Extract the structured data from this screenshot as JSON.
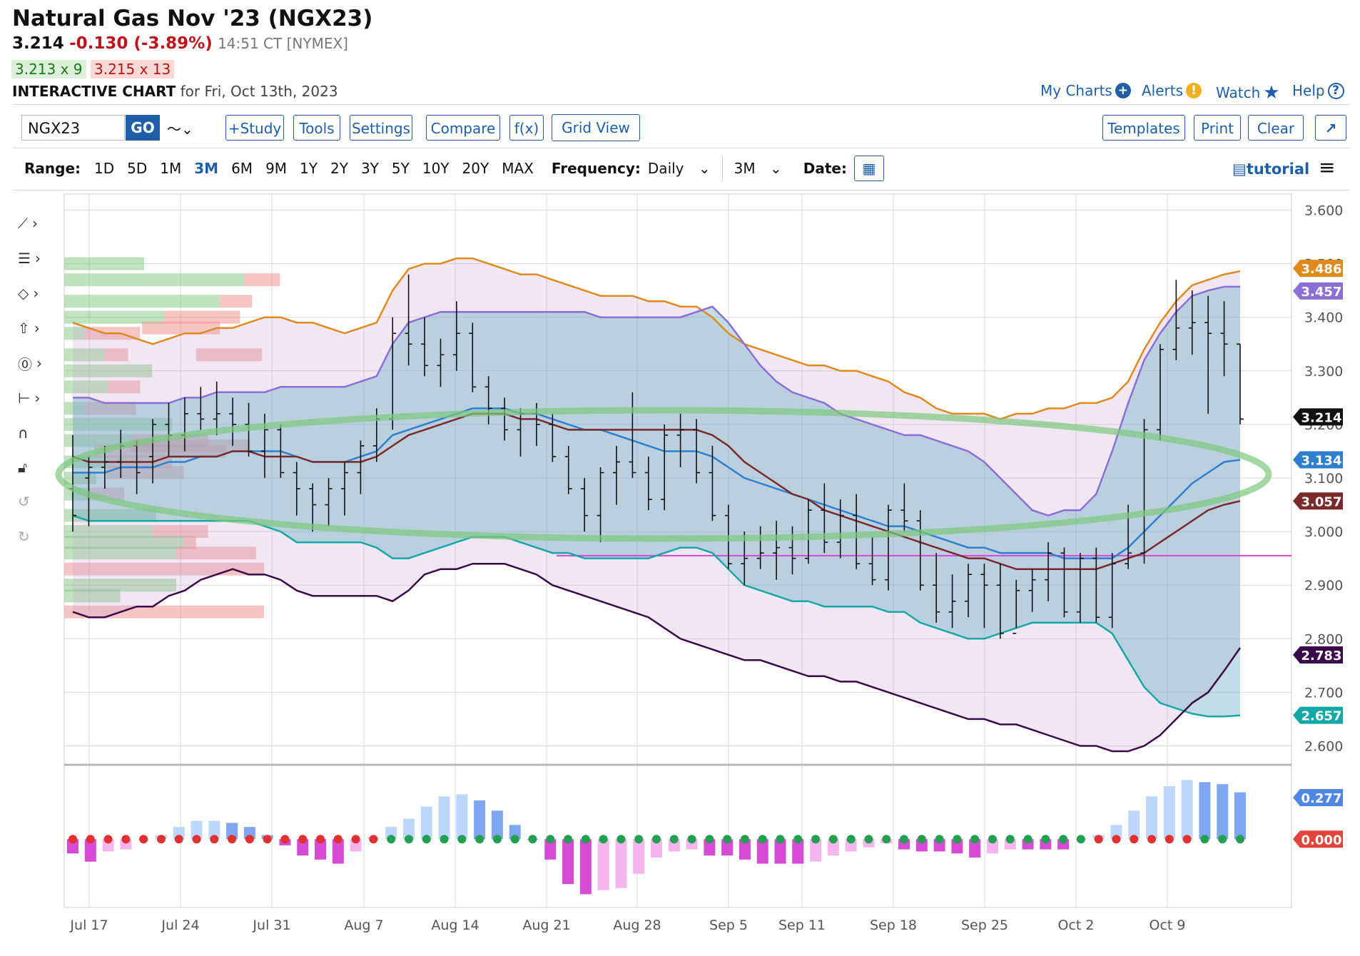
{
  "header": {
    "title": "Natural Gas Nov '23 (NGX23)",
    "last": "3.214",
    "change": "-0.130 (-3.89%)",
    "time": "14:51 CT [NYMEX]",
    "bid": "3.213 x 9",
    "ask": "3.215 x 13",
    "chart_label": "INTERACTIVE CHART",
    "chart_for": "for Fri, Oct 13th, 2023"
  },
  "top_links": {
    "my_charts": "My Charts",
    "alerts": "Alerts",
    "watch": "Watch",
    "help": "Help"
  },
  "toolbar": {
    "symbol": "NGX23",
    "go": "GO",
    "study": "+Study",
    "tools": "Tools",
    "settings": "Settings",
    "compare": "Compare",
    "fx": "f(x)",
    "grid": "Grid View",
    "templates": "Templates",
    "print": "Print",
    "clear": "Clear",
    "expand": "↗"
  },
  "range": {
    "label": "Range:",
    "items": [
      "1D",
      "5D",
      "1M",
      "3M",
      "6M",
      "9M",
      "1Y",
      "2Y",
      "3Y",
      "5Y",
      "10Y",
      "20Y",
      "MAX"
    ],
    "selected": "3M",
    "frequency_label": "Frequency:",
    "frequency": "Daily",
    "period": "3M",
    "date_label": "Date:",
    "tutorial": "tutorial"
  },
  "colors": {
    "grid": "#d8d8d8",
    "upper_band": "#e08a1e",
    "ma_purple": "#8a6fd6",
    "ma_blue": "#2f7fd0",
    "ma_brown": "#7a2a2a",
    "lower_teal": "#16a8a8",
    "lower_dark": "#3b0a4a",
    "highlight": "#7ec87e",
    "magenta_line": "#d946d9",
    "price": "#111111"
  },
  "chart_data": {
    "type": "bar",
    "x_labels": [
      "Jul 17",
      "Jul 24",
      "Jul 31",
      "Aug 7",
      "Aug 14",
      "Aug 21",
      "Aug 28",
      "Sep 5",
      "Sep 11",
      "Sep 18",
      "Sep 25",
      "Oct 2",
      "Oct 9"
    ],
    "y_ticks": [
      "3.600",
      "3.500",
      "3.400",
      "3.300",
      "3.200",
      "3.100",
      "3.000",
      "2.900",
      "2.800",
      "2.700",
      "2.600"
    ],
    "ylim": [
      2.57,
      3.63
    ],
    "ohlc": [
      [
        3.08,
        3.18,
        3.0,
        3.03
      ],
      [
        3.1,
        3.14,
        3.01,
        3.12
      ],
      [
        3.12,
        3.16,
        3.08,
        3.13
      ],
      [
        3.13,
        3.19,
        3.1,
        3.16
      ],
      [
        3.16,
        3.17,
        3.07,
        3.11
      ],
      [
        3.14,
        3.21,
        3.09,
        3.2
      ],
      [
        3.2,
        3.24,
        3.14,
        3.18
      ],
      [
        3.18,
        3.25,
        3.15,
        3.22
      ],
      [
        3.22,
        3.27,
        3.19,
        3.21
      ],
      [
        3.21,
        3.28,
        3.18,
        3.22
      ],
      [
        3.22,
        3.25,
        3.16,
        3.2
      ],
      [
        3.2,
        3.24,
        3.14,
        3.15
      ],
      [
        3.15,
        3.22,
        3.1,
        3.19
      ],
      [
        3.19,
        3.2,
        3.1,
        3.11
      ],
      [
        3.11,
        3.13,
        3.03,
        3.08
      ],
      [
        3.08,
        3.09,
        3.0,
        3.05
      ],
      [
        3.05,
        3.1,
        3.01,
        3.08
      ],
      [
        3.08,
        3.13,
        3.03,
        3.11
      ],
      [
        3.11,
        3.17,
        3.07,
        3.16
      ],
      [
        3.16,
        3.23,
        3.13,
        3.21
      ],
      [
        3.21,
        3.4,
        3.19,
        3.37
      ],
      [
        3.37,
        3.48,
        3.31,
        3.35
      ],
      [
        3.35,
        3.4,
        3.29,
        3.31
      ],
      [
        3.31,
        3.36,
        3.27,
        3.33
      ],
      [
        3.33,
        3.43,
        3.3,
        3.37
      ],
      [
        3.37,
        3.39,
        3.26,
        3.27
      ],
      [
        3.27,
        3.29,
        3.2,
        3.23
      ],
      [
        3.23,
        3.25,
        3.17,
        3.19
      ],
      [
        3.19,
        3.23,
        3.14,
        3.22
      ],
      [
        3.22,
        3.24,
        3.16,
        3.2
      ],
      [
        3.2,
        3.22,
        3.13,
        3.14
      ],
      [
        3.14,
        3.16,
        3.07,
        3.08
      ],
      [
        3.08,
        3.1,
        3.0,
        3.03
      ],
      [
        3.03,
        3.12,
        2.98,
        3.11
      ],
      [
        3.11,
        3.16,
        3.05,
        3.13
      ],
      [
        3.13,
        3.26,
        3.1,
        3.11
      ],
      [
        3.11,
        3.14,
        3.04,
        3.06
      ],
      [
        3.06,
        3.2,
        3.04,
        3.18
      ],
      [
        3.18,
        3.22,
        3.12,
        3.19
      ],
      [
        3.19,
        3.21,
        3.09,
        3.11
      ],
      [
        3.11,
        3.16,
        3.02,
        3.03
      ],
      [
        3.03,
        3.05,
        2.93,
        2.94
      ],
      [
        2.94,
        3.0,
        2.9,
        2.95
      ],
      [
        2.95,
        3.01,
        2.93,
        2.96
      ],
      [
        2.96,
        3.02,
        2.91,
        2.97
      ],
      [
        2.97,
        3.01,
        2.92,
        2.95
      ],
      [
        2.95,
        3.06,
        2.94,
        3.04
      ],
      [
        3.04,
        3.09,
        2.96,
        2.98
      ],
      [
        2.98,
        3.06,
        2.95,
        3.03
      ],
      [
        3.03,
        3.07,
        2.93,
        2.94
      ],
      [
        2.94,
        2.99,
        2.9,
        2.91
      ],
      [
        2.91,
        3.05,
        2.89,
        3.04
      ],
      [
        3.04,
        3.09,
        3.0,
        3.02
      ],
      [
        3.02,
        3.04,
        2.89,
        2.9
      ],
      [
        2.9,
        2.96,
        2.83,
        2.85
      ],
      [
        2.85,
        2.92,
        2.82,
        2.87
      ],
      [
        2.87,
        2.94,
        2.84,
        2.92
      ],
      [
        2.92,
        2.94,
        2.82,
        2.9
      ],
      [
        2.9,
        2.94,
        2.8,
        2.81
      ],
      [
        2.81,
        2.91,
        2.82,
        2.89
      ],
      [
        2.89,
        2.93,
        2.85,
        2.91
      ],
      [
        2.91,
        2.98,
        2.87,
        2.96
      ],
      [
        2.96,
        2.97,
        2.84,
        2.85
      ],
      [
        2.85,
        2.96,
        2.83,
        2.95
      ],
      [
        2.95,
        2.97,
        2.83,
        2.84
      ],
      [
        2.84,
        2.96,
        2.82,
        2.94
      ],
      [
        2.94,
        3.05,
        2.93,
        2.96
      ],
      [
        2.96,
        3.21,
        2.94,
        3.19
      ],
      [
        3.19,
        3.35,
        3.17,
        3.34
      ],
      [
        3.34,
        3.47,
        3.32,
        3.38
      ],
      [
        3.38,
        3.45,
        3.33,
        3.39
      ],
      [
        3.39,
        3.44,
        3.22,
        3.37
      ],
      [
        3.37,
        3.43,
        3.29,
        3.35
      ],
      [
        3.35,
        3.35,
        3.2,
        3.21
      ]
    ],
    "series": [
      {
        "name": "upper_band",
        "values": [
          3.39,
          3.38,
          3.37,
          3.37,
          3.36,
          3.35,
          3.36,
          3.37,
          3.37,
          3.38,
          3.38,
          3.39,
          3.4,
          3.4,
          3.39,
          3.39,
          3.38,
          3.37,
          3.38,
          3.39,
          3.45,
          3.49,
          3.5,
          3.5,
          3.51,
          3.51,
          3.5,
          3.49,
          3.48,
          3.48,
          3.47,
          3.46,
          3.45,
          3.44,
          3.44,
          3.44,
          3.43,
          3.43,
          3.42,
          3.42,
          3.4,
          3.37,
          3.35,
          3.34,
          3.33,
          3.32,
          3.31,
          3.31,
          3.3,
          3.3,
          3.29,
          3.28,
          3.26,
          3.25,
          3.23,
          3.22,
          3.22,
          3.22,
          3.21,
          3.22,
          3.22,
          3.23,
          3.23,
          3.24,
          3.24,
          3.25,
          3.28,
          3.34,
          3.39,
          3.43,
          3.46,
          3.47,
          3.48,
          3.486
        ]
      },
      {
        "name": "ma_purple",
        "values": [
          3.25,
          3.25,
          3.24,
          3.24,
          3.24,
          3.24,
          3.24,
          3.25,
          3.25,
          3.26,
          3.26,
          3.26,
          3.26,
          3.27,
          3.27,
          3.27,
          3.27,
          3.27,
          3.28,
          3.29,
          3.35,
          3.39,
          3.4,
          3.41,
          3.41,
          3.41,
          3.41,
          3.41,
          3.41,
          3.41,
          3.41,
          3.41,
          3.41,
          3.4,
          3.4,
          3.4,
          3.4,
          3.4,
          3.4,
          3.41,
          3.42,
          3.39,
          3.35,
          3.31,
          3.28,
          3.26,
          3.25,
          3.24,
          3.22,
          3.21,
          3.2,
          3.19,
          3.18,
          3.18,
          3.17,
          3.16,
          3.15,
          3.13,
          3.1,
          3.07,
          3.04,
          3.03,
          3.04,
          3.04,
          3.07,
          3.15,
          3.24,
          3.32,
          3.37,
          3.41,
          3.44,
          3.45,
          3.457,
          3.457
        ]
      },
      {
        "name": "ma_blue",
        "values": [
          3.11,
          3.11,
          3.11,
          3.12,
          3.12,
          3.12,
          3.13,
          3.13,
          3.14,
          3.14,
          3.15,
          3.15,
          3.15,
          3.15,
          3.14,
          3.13,
          3.13,
          3.13,
          3.14,
          3.15,
          3.18,
          3.19,
          3.2,
          3.21,
          3.22,
          3.23,
          3.23,
          3.23,
          3.22,
          3.22,
          3.21,
          3.2,
          3.19,
          3.19,
          3.18,
          3.17,
          3.16,
          3.15,
          3.15,
          3.15,
          3.14,
          3.12,
          3.1,
          3.09,
          3.08,
          3.07,
          3.06,
          3.05,
          3.04,
          3.03,
          3.02,
          3.01,
          3.01,
          3.0,
          2.99,
          2.98,
          2.97,
          2.97,
          2.96,
          2.96,
          2.96,
          2.96,
          2.95,
          2.95,
          2.95,
          2.95,
          2.97,
          3.0,
          3.03,
          3.06,
          3.09,
          3.11,
          3.13,
          3.134
        ]
      },
      {
        "name": "ma_brown",
        "values": [
          3.14,
          3.13,
          3.13,
          3.13,
          3.13,
          3.13,
          3.14,
          3.14,
          3.14,
          3.14,
          3.15,
          3.15,
          3.14,
          3.14,
          3.14,
          3.13,
          3.13,
          3.13,
          3.13,
          3.14,
          3.16,
          3.18,
          3.19,
          3.2,
          3.21,
          3.22,
          3.22,
          3.22,
          3.21,
          3.21,
          3.2,
          3.19,
          3.19,
          3.19,
          3.19,
          3.19,
          3.19,
          3.19,
          3.19,
          3.19,
          3.18,
          3.16,
          3.13,
          3.11,
          3.09,
          3.07,
          3.06,
          3.04,
          3.03,
          3.02,
          3.01,
          3.0,
          2.99,
          2.98,
          2.97,
          2.96,
          2.95,
          2.95,
          2.94,
          2.93,
          2.93,
          2.93,
          2.93,
          2.93,
          2.93,
          2.94,
          2.95,
          2.96,
          2.98,
          3.0,
          3.02,
          3.04,
          3.05,
          3.057
        ]
      },
      {
        "name": "lower_teal",
        "values": [
          3.03,
          3.02,
          3.02,
          3.02,
          3.02,
          3.02,
          3.02,
          3.02,
          3.02,
          3.02,
          3.02,
          3.02,
          3.01,
          3.0,
          2.98,
          2.98,
          2.98,
          2.98,
          2.98,
          2.97,
          2.95,
          2.95,
          2.96,
          2.97,
          2.98,
          2.99,
          2.99,
          2.99,
          2.98,
          2.97,
          2.96,
          2.96,
          2.95,
          2.95,
          2.95,
          2.95,
          2.95,
          2.96,
          2.97,
          2.97,
          2.96,
          2.93,
          2.9,
          2.89,
          2.88,
          2.87,
          2.87,
          2.86,
          2.86,
          2.86,
          2.86,
          2.85,
          2.85,
          2.83,
          2.82,
          2.81,
          2.8,
          2.8,
          2.81,
          2.82,
          2.83,
          2.83,
          2.83,
          2.83,
          2.83,
          2.81,
          2.76,
          2.71,
          2.68,
          2.67,
          2.66,
          2.655,
          2.655,
          2.657
        ]
      },
      {
        "name": "lower_dark",
        "values": [
          2.85,
          2.84,
          2.84,
          2.85,
          2.86,
          2.86,
          2.88,
          2.89,
          2.91,
          2.92,
          2.93,
          2.92,
          2.92,
          2.91,
          2.89,
          2.88,
          2.88,
          2.88,
          2.88,
          2.88,
          2.87,
          2.89,
          2.92,
          2.93,
          2.93,
          2.94,
          2.94,
          2.94,
          2.93,
          2.92,
          2.9,
          2.89,
          2.88,
          2.87,
          2.86,
          2.85,
          2.84,
          2.82,
          2.8,
          2.79,
          2.78,
          2.77,
          2.76,
          2.76,
          2.75,
          2.74,
          2.73,
          2.73,
          2.72,
          2.72,
          2.71,
          2.7,
          2.69,
          2.68,
          2.67,
          2.66,
          2.65,
          2.65,
          2.64,
          2.64,
          2.63,
          2.62,
          2.61,
          2.6,
          2.6,
          2.59,
          2.59,
          2.6,
          2.62,
          2.65,
          2.68,
          2.7,
          2.74,
          2.783
        ]
      }
    ],
    "price_level_line": 2.955,
    "badges": [
      {
        "label": "3.486",
        "value": 3.486,
        "color": "#e08a1e"
      },
      {
        "label": "3.457",
        "value": 3.457,
        "color": "#8a6fd6"
      },
      {
        "label": "3.214",
        "value": 3.214,
        "color": "#111111"
      },
      {
        "label": "3.134",
        "value": 3.134,
        "color": "#2f7fd0"
      },
      {
        "label": "3.057",
        "value": 3.057,
        "color": "#7a2a2a"
      },
      {
        "label": "2.783",
        "value": 2.783,
        "color": "#3b0a4a"
      },
      {
        "label": "2.657",
        "value": 2.657,
        "color": "#16a8a8"
      }
    ],
    "volume_profile": [
      {
        "price": 3.5,
        "green": 0.2,
        "red": 0.0
      },
      {
        "price": 3.47,
        "green": 0.45,
        "red": 0.09
      },
      {
        "price": 3.43,
        "green": 0.39,
        "red": 0.08
      },
      {
        "price": 3.4,
        "green": 0.25,
        "red": 0.19
      },
      {
        "price": 3.37,
        "green": 0.05,
        "red": 0.14
      },
      {
        "price": 3.33,
        "green": 0.1,
        "red": 0.06
      },
      {
        "price": 3.3,
        "green": 0.22,
        "red": 0.0
      },
      {
        "price": 3.27,
        "green": 0.11,
        "red": 0.08
      },
      {
        "price": 3.23,
        "green": 0.05,
        "red": 0.13
      },
      {
        "price": 3.2,
        "green": 0.27,
        "red": 0.0
      },
      {
        "price": 3.17,
        "green": 0.17,
        "red": 0.19
      },
      {
        "price": 3.13,
        "green": 0.11,
        "red": 0.16
      },
      {
        "price": 3.1,
        "green": 0.08,
        "red": 0.0
      },
      {
        "price": 3.07,
        "green": 0.06,
        "red": 0.09
      },
      {
        "price": 3.03,
        "green": 0.23,
        "red": 0.0
      },
      {
        "price": 3.0,
        "green": 0.22,
        "red": 0.14
      },
      {
        "price": 2.98,
        "green": 0.3,
        "red": 0.03
      },
      {
        "price": 2.96,
        "green": 0.28,
        "red": 0.2
      },
      {
        "price": 2.93,
        "green": 0.0,
        "red": 0.5
      },
      {
        "price": 2.9,
        "green": 0.28,
        "red": 0.0
      },
      {
        "price": 2.88,
        "green": 0.14,
        "red": 0.0
      },
      {
        "price": 2.85,
        "green": 0.0,
        "red": 0.5
      }
    ],
    "volume_price_rows": [
      {
        "price": 3.38,
        "start": 0.13,
        "width": 0.13,
        "color": "red"
      },
      {
        "price": 3.33,
        "start": 0.22,
        "width": 0.11,
        "color": "red"
      },
      {
        "price": 3.15,
        "start": 0.05,
        "width": 0.22,
        "color": "red"
      },
      {
        "price": 3.11,
        "start": 0.07,
        "width": 0.13,
        "color": "red"
      },
      {
        "price": 3.16,
        "start": 0.11,
        "width": 0.2,
        "color": "red"
      }
    ],
    "indicator": {
      "badge_upper": "0.277",
      "badge_zero": "0.000",
      "hist": [
        -0.07,
        -0.11,
        -0.06,
        -0.05,
        0.0,
        0.02,
        0.06,
        0.09,
        0.09,
        0.08,
        0.06,
        0.02,
        -0.03,
        -0.08,
        -0.1,
        -0.12,
        -0.06,
        0.01,
        0.06,
        0.1,
        0.16,
        0.21,
        0.22,
        0.19,
        0.14,
        0.07,
        0.0,
        -0.1,
        -0.22,
        -0.27,
        -0.25,
        -0.24,
        -0.17,
        -0.09,
        -0.06,
        -0.05,
        -0.08,
        -0.08,
        -0.1,
        -0.12,
        -0.12,
        -0.12,
        -0.11,
        -0.08,
        -0.06,
        -0.04,
        -0.02,
        -0.05,
        -0.06,
        -0.06,
        -0.07,
        -0.09,
        -0.07,
        -0.05,
        -0.05,
        -0.05,
        -0.05,
        0.0,
        0.02,
        0.07,
        0.14,
        0.21,
        0.26,
        0.29,
        0.28,
        0.27,
        0.23
      ],
      "ylim": [
        -0.3,
        0.33
      ],
      "dot_pattern": "rrrrrrrrrrrrrrrrrrggggggggggggggggggggggggggggggggggggggggrrrrrrggggggrrrrrggrrggggggggg"
    }
  }
}
